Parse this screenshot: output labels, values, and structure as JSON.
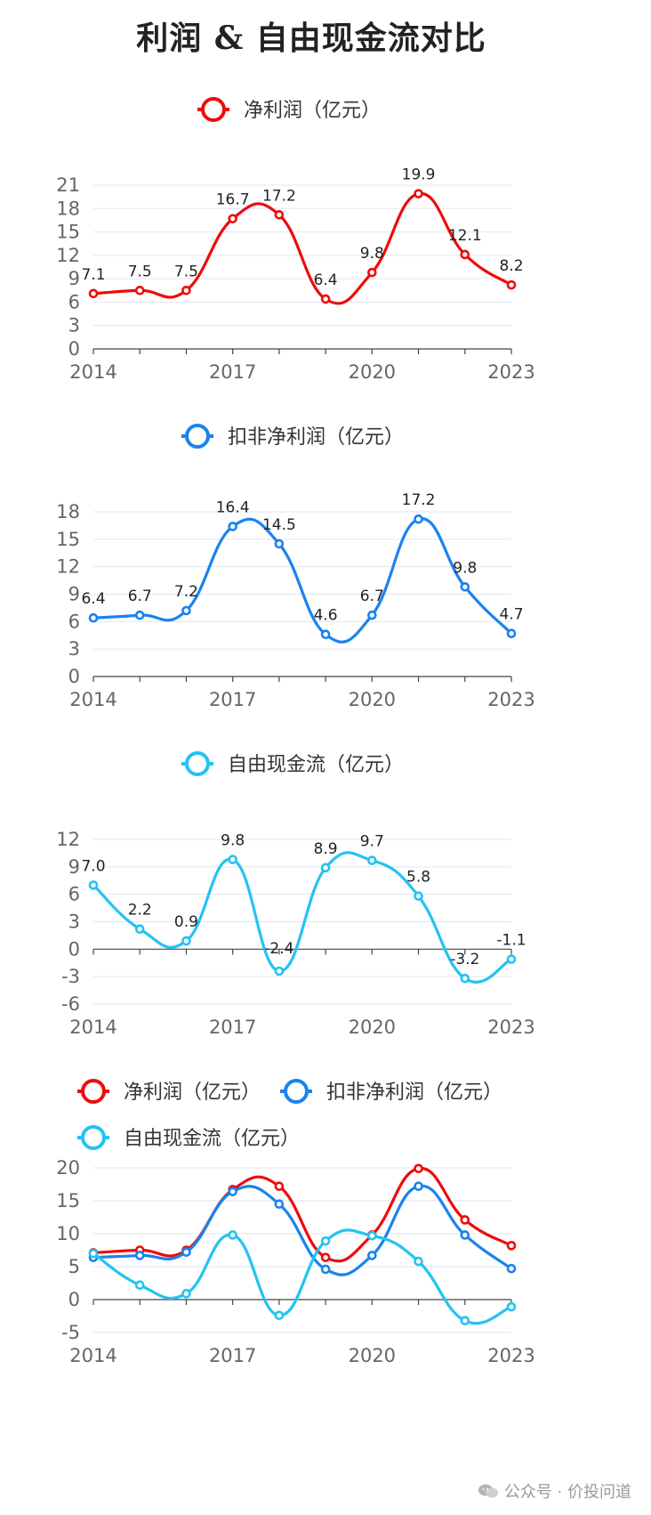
{
  "title": "利润 & 自由现金流对比",
  "watermark": "公众号 · 价投问道",
  "colors": {
    "net_profit": "#ee0c0c",
    "deducted_profit": "#1a82f0",
    "fcf": "#23c3f2"
  },
  "chart_data": [
    {
      "type": "line",
      "id": "np",
      "series": [
        {
          "name": "净利润（亿元）",
          "color": "#ee0c0c",
          "x": [
            2014,
            2015,
            2016,
            2017,
            2018,
            2019,
            2020,
            2021,
            2022,
            2023
          ],
          "values": [
            7.1,
            7.5,
            7.5,
            16.7,
            17.2,
            6.4,
            9.8,
            19.9,
            12.1,
            8.2
          ]
        }
      ],
      "x_ticks": [
        "2014",
        "2017",
        "2020",
        "2023"
      ],
      "y_ticks": [
        "0",
        "3",
        "6",
        "9",
        "12",
        "15",
        "18",
        "21"
      ],
      "ylim": [
        0,
        21
      ],
      "data_labels": [
        "7.1",
        "7.5",
        "7.5",
        "16.7",
        "17.2",
        "6.4",
        "9.8",
        "19.9",
        "12.1",
        "8.2"
      ],
      "legend": "top-center",
      "grid": true
    },
    {
      "type": "line",
      "id": "dp",
      "series": [
        {
          "name": "扣非净利润（亿元）",
          "color": "#1a82f0",
          "x": [
            2014,
            2015,
            2016,
            2017,
            2018,
            2019,
            2020,
            2021,
            2022,
            2023
          ],
          "values": [
            6.4,
            6.7,
            7.2,
            16.4,
            14.5,
            4.6,
            6.7,
            17.2,
            9.8,
            4.7
          ]
        }
      ],
      "x_ticks": [
        "2014",
        "2017",
        "2020",
        "2023"
      ],
      "y_ticks": [
        "0",
        "3",
        "6",
        "9",
        "12",
        "15",
        "18"
      ],
      "ylim": [
        0,
        18
      ],
      "data_labels": [
        "6.4",
        "6.7",
        "7.2",
        "16.4",
        "14.5",
        "4.6",
        "6.7",
        "17.2",
        "9.8",
        "4.7"
      ],
      "legend": "top-center",
      "grid": true
    },
    {
      "type": "line",
      "id": "fcf",
      "series": [
        {
          "name": "自由现金流（亿元）",
          "color": "#23c3f2",
          "x": [
            2014,
            2015,
            2016,
            2017,
            2018,
            2019,
            2020,
            2021,
            2022,
            2023
          ],
          "values": [
            7.0,
            2.2,
            0.9,
            9.8,
            -2.4,
            8.9,
            9.7,
            5.8,
            -3.2,
            -1.1
          ]
        }
      ],
      "x_ticks": [
        "2014",
        "2017",
        "2020",
        "2023"
      ],
      "y_ticks": [
        "-6",
        "-3",
        "0",
        "3",
        "6",
        "9",
        "12"
      ],
      "ylim": [
        -6,
        12
      ],
      "data_labels": [
        "7.0",
        "2.2",
        "0.9",
        "9.8",
        "-2.4",
        "8.9",
        "9.7",
        "5.8",
        "-3.2",
        "-1.1"
      ],
      "legend": "top-center",
      "grid": true
    },
    {
      "type": "line",
      "id": "combined",
      "series": [
        {
          "name": "净利润（亿元）",
          "color": "#ee0c0c",
          "x": [
            2014,
            2015,
            2016,
            2017,
            2018,
            2019,
            2020,
            2021,
            2022,
            2023
          ],
          "values": [
            7.1,
            7.5,
            7.5,
            16.7,
            17.2,
            6.4,
            9.8,
            19.9,
            12.1,
            8.2
          ]
        },
        {
          "name": "扣非净利润（亿元）",
          "color": "#1a82f0",
          "x": [
            2014,
            2015,
            2016,
            2017,
            2018,
            2019,
            2020,
            2021,
            2022,
            2023
          ],
          "values": [
            6.4,
            6.7,
            7.2,
            16.4,
            14.5,
            4.6,
            6.7,
            17.2,
            9.8,
            4.7
          ]
        },
        {
          "name": "自由现金流（亿元）",
          "color": "#23c3f2",
          "x": [
            2014,
            2015,
            2016,
            2017,
            2018,
            2019,
            2020,
            2021,
            2022,
            2023
          ],
          "values": [
            7.0,
            2.2,
            0.9,
            9.8,
            -2.4,
            8.9,
            9.7,
            5.8,
            -3.2,
            -1.1
          ]
        }
      ],
      "x_ticks": [
        "2014",
        "2017",
        "2020",
        "2023"
      ],
      "y_ticks": [
        "-5",
        "0",
        "5",
        "10",
        "15",
        "20"
      ],
      "ylim": [
        -5,
        20
      ],
      "legend": "top-left",
      "grid": true
    }
  ]
}
